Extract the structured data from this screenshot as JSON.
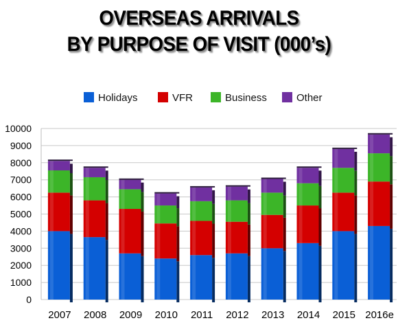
{
  "title": {
    "line1": "OVERSEAS ARRIVALS",
    "line2": "BY PURPOSE OF VISIT (000’s)"
  },
  "chart_data": {
    "type": "bar",
    "stacked": true,
    "categories": [
      "2007",
      "2008",
      "2009",
      "2010",
      "2011",
      "2012",
      "2013",
      "2014",
      "2015",
      "2016e"
    ],
    "series": [
      {
        "name": "Holidays",
        "color": "#0a5fd6",
        "values": [
          4000,
          3650,
          2700,
          2400,
          2600,
          2700,
          3000,
          3300,
          4000,
          4300
        ]
      },
      {
        "name": "VFR",
        "color": "#d40000",
        "values": [
          2250,
          2150,
          2600,
          2050,
          2000,
          1850,
          1950,
          2200,
          2250,
          2600
        ]
      },
      {
        "name": "Business",
        "color": "#3cb528",
        "values": [
          1300,
          1350,
          1150,
          1050,
          1150,
          1250,
          1300,
          1300,
          1450,
          1650
        ]
      },
      {
        "name": "Other",
        "color": "#7030a0",
        "values": [
          550,
          550,
          550,
          700,
          800,
          800,
          800,
          900,
          1100,
          1100
        ]
      }
    ],
    "ylim": [
      0,
      10000
    ],
    "yticks": [
      "10000",
      "9000",
      "8000",
      "7000",
      "6000",
      "5000",
      "4000",
      "3000",
      "2000",
      "1000",
      "0"
    ],
    "legend_position": "top",
    "grid": true,
    "xlabel": "",
    "ylabel": ""
  }
}
